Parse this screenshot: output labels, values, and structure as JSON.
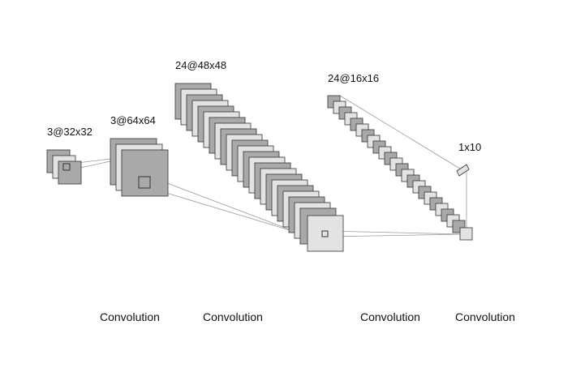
{
  "colors": {
    "dark": "#a9a9a9",
    "light": "#e3e3e3",
    "stroke": "#333333",
    "line": "#999999"
  },
  "layers": [
    {
      "label": "3@32x32",
      "maps": 3
    },
    {
      "label": "3@64x64",
      "maps": 3
    },
    {
      "label": "24@48x48",
      "maps": 24
    },
    {
      "label": "24@16x16",
      "maps": 24
    },
    {
      "label": "1x10",
      "maps": 1
    }
  ],
  "operations": [
    "Convolution",
    "Convolution",
    "Convolution",
    "Convolution"
  ]
}
